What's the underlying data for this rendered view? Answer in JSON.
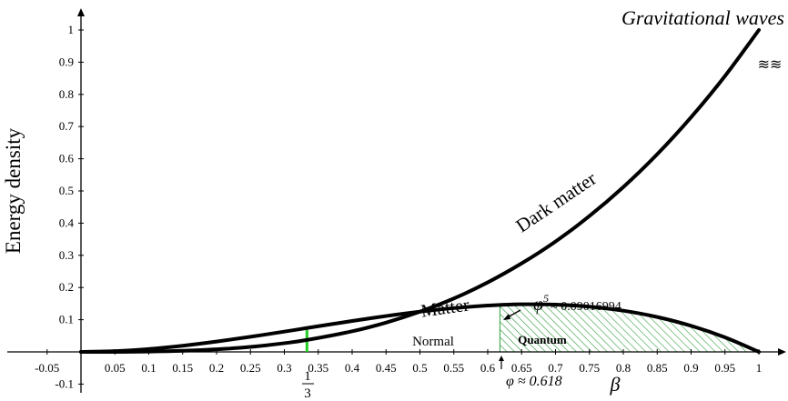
{
  "chart_data": {
    "type": "line",
    "xlabel": "β",
    "ylabel": "Energy density",
    "xlim": [
      -0.08,
      1.02
    ],
    "ylim": [
      -0.12,
      1.02
    ],
    "x_ticks": [
      "-0.05",
      "0.05",
      "0.1",
      "0.15",
      "0.2",
      "0.25",
      "0.3",
      "0.35",
      "0.4",
      "0.45",
      "0.5",
      "0.55",
      "0.6",
      "0.65",
      "0.7",
      "0.75",
      "0.8",
      "0.85",
      "0.9",
      "0.95",
      "1"
    ],
    "x_tick_values": [
      -0.05,
      0.05,
      0.1,
      0.15,
      0.2,
      0.25,
      0.3,
      0.35,
      0.4,
      0.45,
      0.5,
      0.55,
      0.6,
      0.65,
      0.7,
      0.75,
      0.8,
      0.85,
      0.9,
      0.95,
      1
    ],
    "y_ticks": [
      "-0.1",
      "0.1",
      "0.2",
      "0.3",
      "0.4",
      "0.5",
      "0.6",
      "0.7",
      "0.8",
      "0.9",
      "1"
    ],
    "y_tick_values": [
      -0.1,
      0.1,
      0.2,
      0.3,
      0.4,
      0.5,
      0.6,
      0.7,
      0.8,
      0.9,
      1
    ],
    "series": [
      {
        "name": "Dark matter",
        "x": [
          0,
          0.05,
          0.1,
          0.15,
          0.2,
          0.25,
          0.3,
          0.333,
          0.4,
          0.45,
          0.5,
          0.55,
          0.6,
          0.65,
          0.7,
          0.75,
          0.8,
          0.85,
          0.9,
          0.95,
          1
        ],
        "y": [
          0,
          0.0001,
          0.001,
          0.0034,
          0.008,
          0.0156,
          0.027,
          0.037,
          0.064,
          0.091,
          0.125,
          0.166,
          0.216,
          0.275,
          0.343,
          0.422,
          0.512,
          0.614,
          0.729,
          0.857,
          1
        ]
      },
      {
        "name": "Matter",
        "x": [
          0,
          0.05,
          0.1,
          0.15,
          0.2,
          0.25,
          0.3,
          0.333,
          0.4,
          0.45,
          0.5,
          0.55,
          0.6,
          0.618,
          0.65,
          0.7,
          0.75,
          0.8,
          0.85,
          0.9,
          0.95,
          1
        ],
        "y": [
          0,
          0.0024,
          0.009,
          0.0191,
          0.032,
          0.0469,
          0.063,
          0.0741,
          0.096,
          0.1114,
          0.125,
          0.1361,
          0.144,
          0.1459,
          0.1479,
          0.147,
          0.1406,
          0.128,
          0.1084,
          0.081,
          0.0451,
          0
        ]
      }
    ],
    "annotations": {
      "gravitational_waves": "Gravitational waves",
      "dark_matter": "Dark matter",
      "matter": "Matter",
      "phi5_prefix": "φ",
      "phi5_exp": "5",
      "phi5_value": "≈ 0.09016994",
      "normal": "Normal",
      "quantum": "Quantum",
      "phi_value": "φ ≈ 0.618",
      "third_num": "1",
      "third_den": "3",
      "wave_symbols": "≋≋"
    },
    "colors": {
      "curve": "#000000",
      "one_third_marker": "#22cc22",
      "quantum_hatch": "#2e9e3e"
    }
  }
}
